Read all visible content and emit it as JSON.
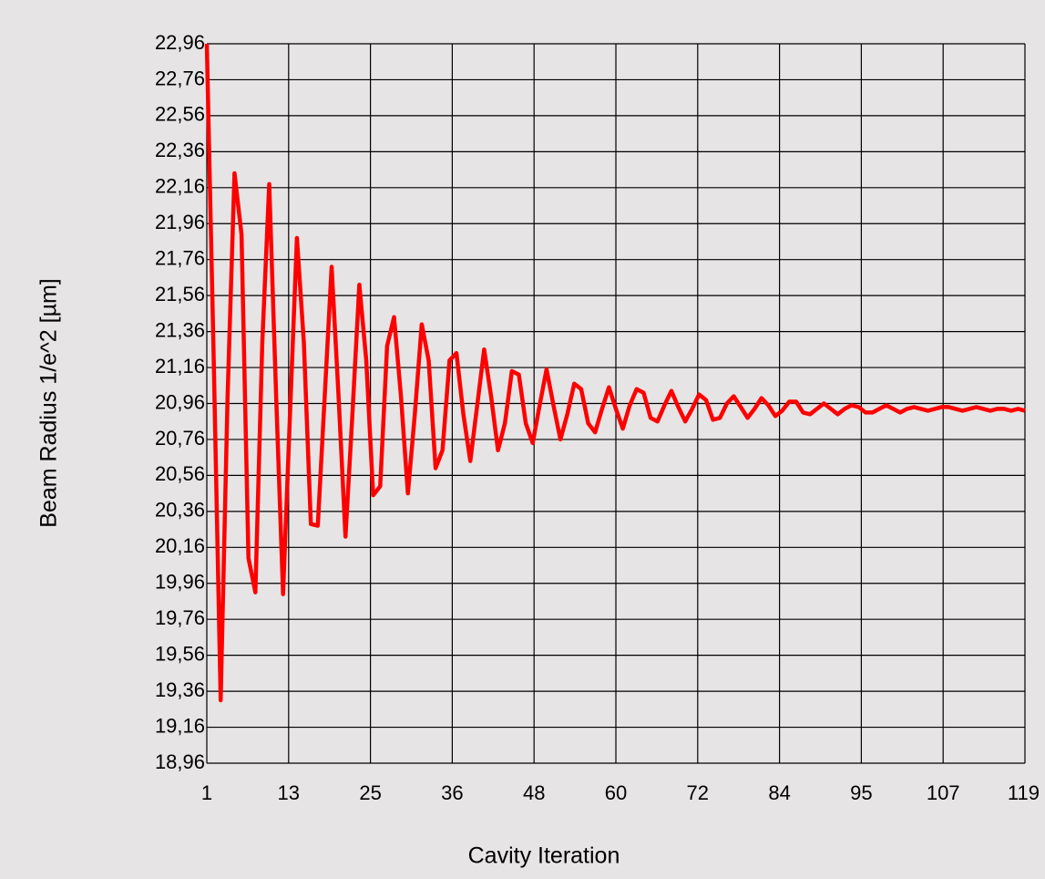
{
  "chart_data": {
    "type": "line",
    "x_label": "Cavity Iteration",
    "y_label": "Beam Radius 1/e^2  [µm]",
    "x": [
      1,
      2,
      3,
      4,
      5,
      6,
      7,
      8,
      9,
      10,
      11,
      12,
      13,
      14,
      15,
      16,
      17,
      18,
      19,
      20,
      21,
      22,
      23,
      24,
      25,
      26,
      27,
      28,
      29,
      30,
      31,
      32,
      33,
      34,
      35,
      36,
      37,
      38,
      39,
      40,
      41,
      42,
      43,
      44,
      45,
      46,
      47,
      48,
      49,
      50,
      51,
      52,
      53,
      54,
      55,
      56,
      57,
      58,
      59,
      60,
      61,
      62,
      63,
      64,
      65,
      66,
      67,
      68,
      69,
      70,
      71,
      72,
      73,
      74,
      75,
      76,
      77,
      78,
      79,
      80,
      81,
      82,
      83,
      84,
      85,
      86,
      87,
      88,
      89,
      90,
      91,
      92,
      93,
      94,
      95,
      96,
      97,
      98,
      99,
      100,
      101,
      102,
      103,
      104,
      105,
      106,
      107,
      108,
      109,
      110,
      111,
      112,
      113,
      114,
      115,
      116,
      117,
      118,
      119
    ],
    "series": [
      {
        "name": "Beam Radius",
        "color": "#ff0000",
        "values": [
          22.96,
          21.2,
          19.31,
          21.0,
          22.24,
          21.9,
          20.1,
          19.91,
          21.3,
          22.18,
          21.0,
          19.9,
          20.9,
          21.88,
          21.3,
          20.29,
          20.28,
          21.0,
          21.72,
          21.0,
          20.22,
          20.9,
          21.62,
          21.2,
          20.45,
          20.5,
          21.28,
          21.44,
          21.0,
          20.46,
          20.9,
          21.4,
          21.2,
          20.6,
          20.7,
          21.2,
          21.24,
          20.9,
          20.64,
          20.95,
          21.26,
          21.0,
          20.7,
          20.85,
          21.14,
          21.12,
          20.85,
          20.74,
          20.95,
          21.15,
          20.95,
          20.76,
          20.9,
          21.07,
          21.04,
          20.85,
          20.8,
          20.93,
          21.05,
          20.93,
          20.82,
          20.95,
          21.04,
          21.02,
          20.88,
          20.86,
          20.95,
          21.03,
          20.94,
          20.86,
          20.93,
          21.01,
          20.98,
          20.87,
          20.88,
          20.96,
          21.0,
          20.94,
          20.88,
          20.93,
          20.99,
          20.95,
          20.89,
          20.92,
          20.97,
          20.97,
          20.91,
          20.9,
          20.93,
          20.96,
          20.93,
          20.9,
          20.93,
          20.95,
          20.94,
          20.91,
          20.91,
          20.93,
          20.95,
          20.93,
          20.91,
          20.93,
          20.94,
          20.93,
          20.92,
          20.93,
          20.94,
          20.94,
          20.93,
          20.92,
          20.93,
          20.94,
          20.93,
          20.92,
          20.93,
          20.93,
          20.92,
          20.93,
          20.92
        ]
      }
    ],
    "xlim": [
      1,
      119
    ],
    "xticks": [
      1,
      {
        "value": 12.8,
        "label": "13"
      },
      {
        "value": 24.6,
        "label": "25"
      },
      {
        "value": 36.4,
        "label": "36"
      },
      {
        "value": 48.2,
        "label": "48"
      },
      60,
      {
        "value": 71.8,
        "label": "72"
      },
      {
        "value": 83.6,
        "label": "84"
      },
      {
        "value": 95.4,
        "label": "95"
      },
      {
        "value": 107.2,
        "label": "107"
      },
      119
    ],
    "ylim": [
      18.96,
      22.96
    ],
    "yticks": [
      {
        "value": 18.96,
        "label": "18,96"
      },
      {
        "value": 19.16,
        "label": "19,16"
      },
      {
        "value": 19.36,
        "label": "19,36"
      },
      {
        "value": 19.56,
        "label": "19,56"
      },
      {
        "value": 19.76,
        "label": "19,76"
      },
      {
        "value": 19.96,
        "label": "19,96"
      },
      {
        "value": 20.16,
        "label": "20,16"
      },
      {
        "value": 20.36,
        "label": "20,36"
      },
      {
        "value": 20.56,
        "label": "20,56"
      },
      {
        "value": 20.76,
        "label": "20,76"
      },
      {
        "value": 20.96,
        "label": "20,96"
      },
      {
        "value": 21.16,
        "label": "21,16"
      },
      {
        "value": 21.36,
        "label": "21,36"
      },
      {
        "value": 21.56,
        "label": "21,56"
      },
      {
        "value": 21.76,
        "label": "21,76"
      },
      {
        "value": 21.96,
        "label": "21,96"
      },
      {
        "value": 22.16,
        "label": "22,16"
      },
      {
        "value": 22.36,
        "label": "22,36"
      },
      {
        "value": 22.56,
        "label": "22,56"
      },
      {
        "value": 22.76,
        "label": "22,76"
      },
      {
        "value": 22.96,
        "label": "22,96"
      }
    ],
    "grid": true
  }
}
